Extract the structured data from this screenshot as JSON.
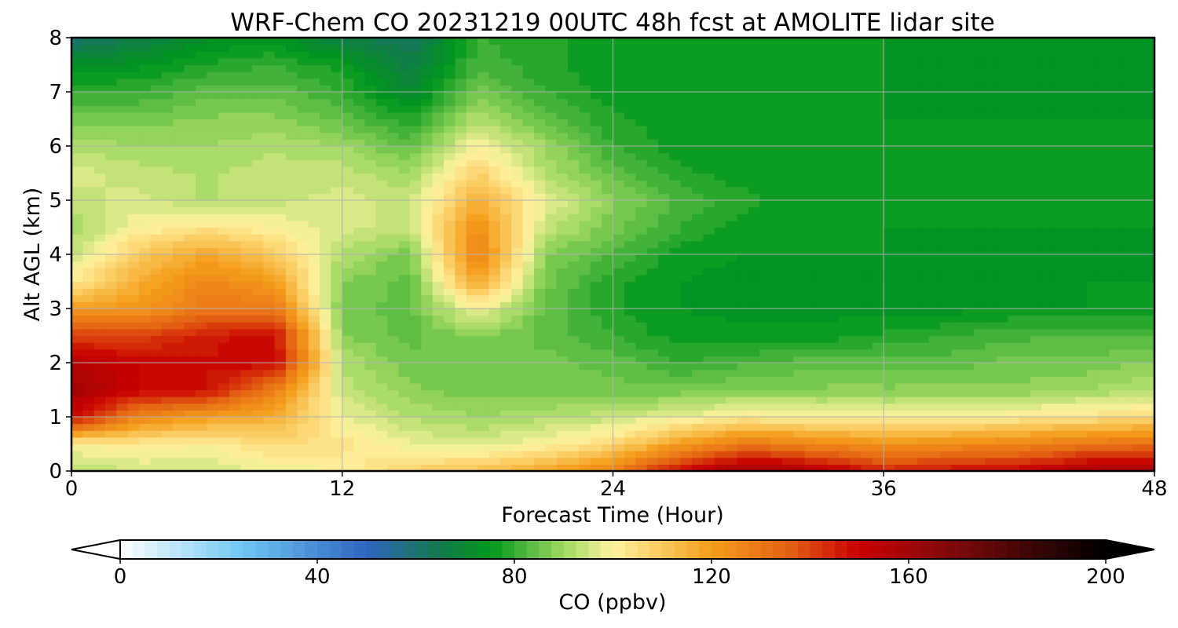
{
  "chart_data": {
    "type": "heatmap",
    "subtype": "filled-contour time-height cross-section",
    "title": "WRF-Chem CO  20231219 00UTC 48h fcst at AMOLITE lidar site",
    "xlabel": "Forecast Time (Hour)",
    "ylabel": "Alt AGL (km)",
    "xlim": [
      0,
      48
    ],
    "ylim": [
      0,
      8
    ],
    "xticks": [
      0,
      12,
      24,
      36,
      48
    ],
    "xtick_labels": [
      "0",
      "12",
      "24",
      "36",
      "48"
    ],
    "yticks": [
      0,
      1,
      2,
      3,
      4,
      5,
      6,
      7,
      8
    ],
    "ytick_labels": [
      "0",
      "1",
      "2",
      "3",
      "4",
      "5",
      "6",
      "7",
      "8"
    ],
    "grid": true,
    "x": [
      0,
      3,
      6,
      9,
      12,
      15,
      18,
      21,
      24,
      27,
      30,
      33,
      36,
      39,
      42,
      45,
      48
    ],
    "y": [
      0,
      0.5,
      1,
      1.5,
      2,
      2.5,
      3,
      3.5,
      4,
      4.5,
      5,
      5.5,
      6,
      6.5,
      7,
      7.5,
      8
    ],
    "z_units": "ppbv",
    "z_rows_by_altitude": [
      [
        92,
        95,
        95,
        98,
        100,
        108,
        112,
        118,
        128,
        150,
        162,
        155,
        145,
        148,
        150,
        158,
        160
      ],
      [
        100,
        102,
        100,
        106,
        104,
        98,
        96,
        100,
        106,
        120,
        130,
        126,
        122,
        124,
        126,
        130,
        132
      ],
      [
        150,
        126,
        120,
        116,
        98,
        92,
        90,
        92,
        94,
        98,
        102,
        100,
        100,
        100,
        102,
        104,
        106
      ],
      [
        160,
        150,
        148,
        128,
        94,
        88,
        86,
        86,
        86,
        86,
        88,
        88,
        88,
        88,
        88,
        90,
        92
      ],
      [
        155,
        150,
        148,
        150,
        92,
        86,
        86,
        86,
        84,
        80,
        82,
        84,
        84,
        84,
        86,
        86,
        88
      ],
      [
        140,
        140,
        146,
        150,
        88,
        84,
        88,
        84,
        80,
        76,
        76,
        76,
        78,
        80,
        82,
        82,
        82
      ],
      [
        120,
        122,
        130,
        130,
        86,
        84,
        100,
        84,
        78,
        75,
        74,
        74,
        74,
        74,
        75,
        75,
        76
      ],
      [
        102,
        116,
        126,
        120,
        88,
        84,
        118,
        86,
        78,
        75,
        74,
        74,
        74,
        74,
        74,
        75,
        75
      ],
      [
        94,
        110,
        118,
        110,
        92,
        86,
        128,
        88,
        82,
        76,
        75,
        75,
        75,
        74,
        74,
        74,
        75
      ],
      [
        90,
        100,
        104,
        100,
        96,
        94,
        124,
        94,
        86,
        80,
        76,
        76,
        75,
        75,
        75,
        75,
        75
      ],
      [
        94,
        96,
        92,
        94,
        96,
        94,
        116,
        98,
        88,
        82,
        78,
        76,
        76,
        75,
        75,
        75,
        75
      ],
      [
        96,
        94,
        92,
        94,
        94,
        90,
        108,
        92,
        84,
        78,
        76,
        76,
        76,
        75,
        75,
        75,
        75
      ],
      [
        92,
        90,
        90,
        92,
        90,
        84,
        100,
        90,
        80,
        76,
        76,
        75,
        75,
        75,
        75,
        75,
        75
      ],
      [
        86,
        86,
        88,
        88,
        84,
        78,
        92,
        84,
        78,
        76,
        75,
        75,
        75,
        75,
        75,
        75,
        75
      ],
      [
        80,
        80,
        84,
        84,
        80,
        70,
        86,
        80,
        76,
        76,
        75,
        75,
        75,
        74,
        74,
        74,
        75
      ],
      [
        72,
        74,
        78,
        80,
        76,
        66,
        82,
        78,
        76,
        76,
        75,
        75,
        75,
        74,
        74,
        74,
        75
      ],
      [
        60,
        66,
        72,
        74,
        66,
        62,
        80,
        78,
        76,
        76,
        75,
        75,
        75,
        74,
        74,
        74,
        75
      ]
    ],
    "colorbar": {
      "label": "CO  (ppbv)",
      "orientation": "horizontal",
      "placement": "bottom",
      "range": [
        0,
        200
      ],
      "extend": "both",
      "ticks": [
        0,
        40,
        80,
        120,
        160,
        200
      ],
      "tick_labels": [
        "0",
        "40",
        "80",
        "120",
        "160",
        "200"
      ],
      "color_stops": [
        {
          "value": 0,
          "color": "#ffffff"
        },
        {
          "value": 25,
          "color": "#6ec6f2"
        },
        {
          "value": 50,
          "color": "#2f64c0"
        },
        {
          "value": 65,
          "color": "#117a4a"
        },
        {
          "value": 75,
          "color": "#00961c"
        },
        {
          "value": 90,
          "color": "#9fd860"
        },
        {
          "value": 100,
          "color": "#fff3a0"
        },
        {
          "value": 120,
          "color": "#f49d1a"
        },
        {
          "value": 135,
          "color": "#e46414"
        },
        {
          "value": 150,
          "color": "#c80000"
        },
        {
          "value": 170,
          "color": "#7a0a0a"
        },
        {
          "value": 200,
          "color": "#000000"
        }
      ],
      "over_color": "#000000",
      "under_color": "#ffffff"
    }
  }
}
